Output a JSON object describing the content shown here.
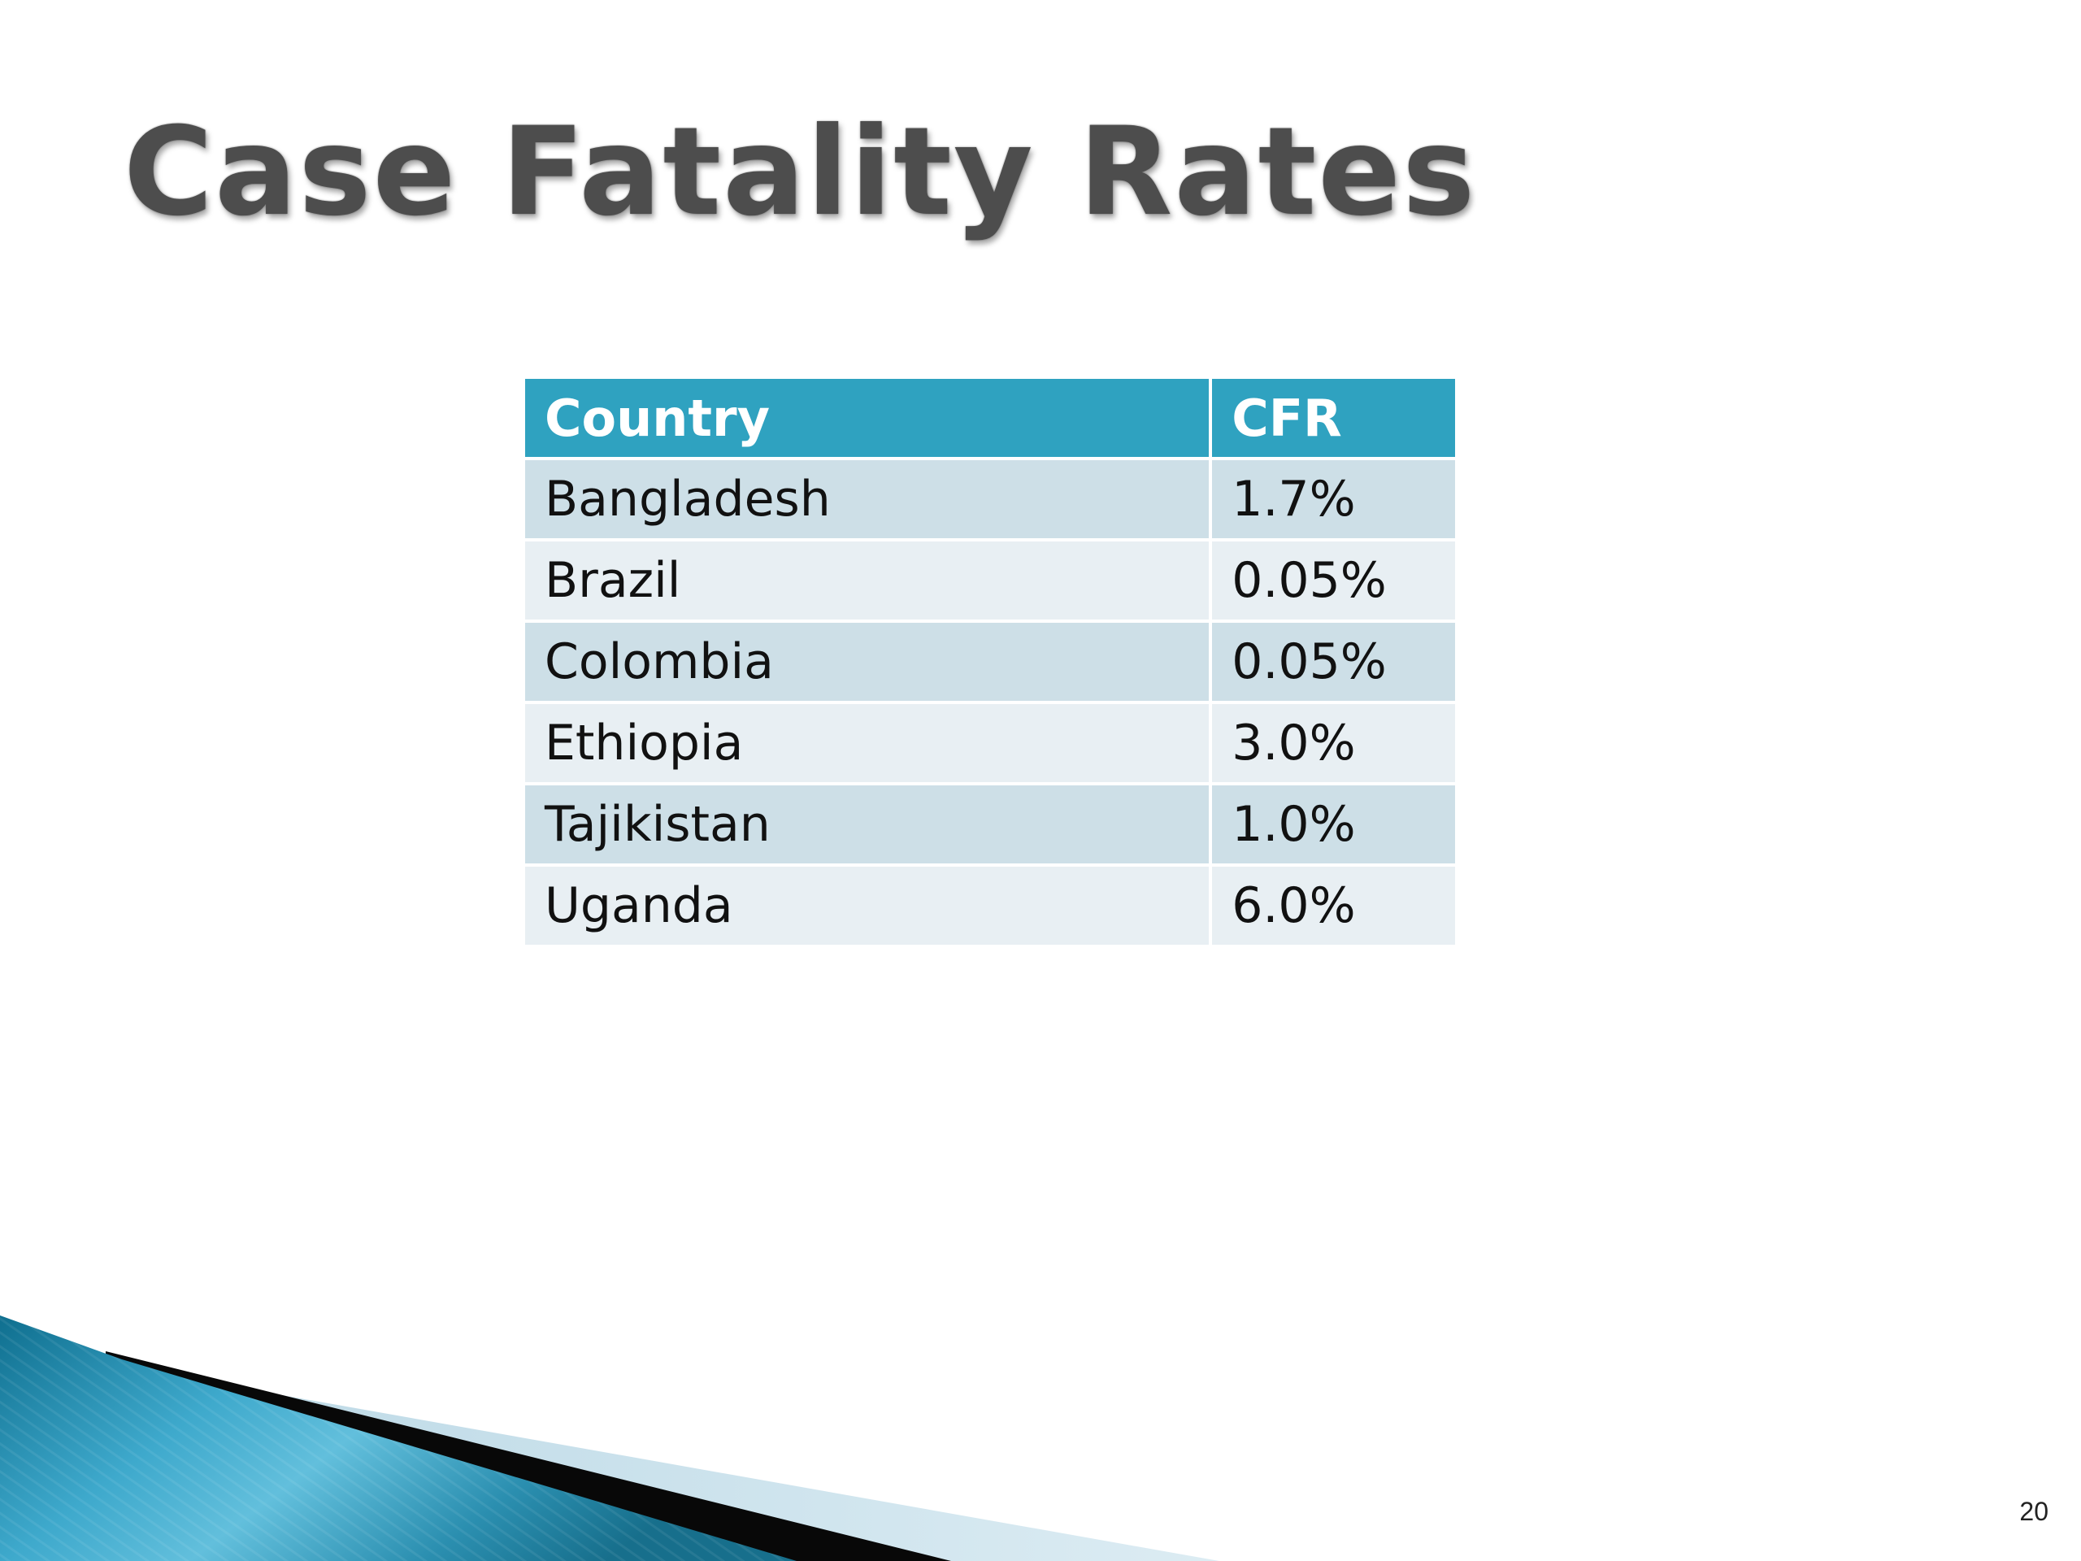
{
  "slide": {
    "title": "Case Fatality Rates",
    "page_number": "20"
  },
  "table": {
    "headers": {
      "country": "Country",
      "cfr": "CFR"
    },
    "rows": [
      {
        "country": "Bangladesh",
        "cfr": "1.7%"
      },
      {
        "country": "Brazil",
        "cfr": "0.05%"
      },
      {
        "country": "Colombia",
        "cfr": "0.05%"
      },
      {
        "country": "Ethiopia",
        "cfr": "3.0%"
      },
      {
        "country": "Tajikistan",
        "cfr": "1.0%"
      },
      {
        "country": "Uganda",
        "cfr": "6.0%"
      }
    ]
  },
  "colors": {
    "header_bg": "#2fa2c0",
    "row_odd_bg": "#cddfe7",
    "row_even_bg": "#e8eff3",
    "title_color": "#4d4d4d",
    "accent_teal": "#1a7f9c"
  }
}
